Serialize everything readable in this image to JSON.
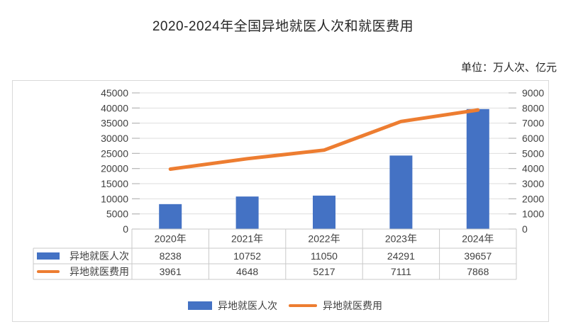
{
  "title": "2020-2024年全国异地就医人次和就医费用",
  "unit_label": "单位：万人次、亿元",
  "colors": {
    "bar": "#4472C4",
    "line": "#ED7D31",
    "grid": "#dedede",
    "table_border": "#c9c9c9",
    "tick": "#b7b7b7",
    "text": "#404040"
  },
  "chart_data": {
    "type": "bar",
    "subtype": "combo-bar-line-dual-axis",
    "title": "2020-2024年全国异地就医人次和就医费用",
    "unit": "单位：万人次、亿元",
    "categories": [
      "2020年",
      "2021年",
      "2022年",
      "2023年",
      "2024年"
    ],
    "series": [
      {
        "name": "异地就医人次",
        "type": "bar",
        "axis": "left",
        "color": "#4472C4",
        "values": [
          8238,
          10752,
          11050,
          24291,
          39657
        ]
      },
      {
        "name": "异地就医费用",
        "type": "line",
        "axis": "right",
        "color": "#ED7D31",
        "values": [
          3961,
          4648,
          5217,
          7111,
          7868
        ]
      }
    ],
    "left_axis": {
      "min": 0,
      "max": 45000,
      "step": 5000
    },
    "right_axis": {
      "min": 0,
      "max": 9000,
      "step": 1000
    },
    "grid": true,
    "data_table": true,
    "legend_position": "bottom"
  }
}
